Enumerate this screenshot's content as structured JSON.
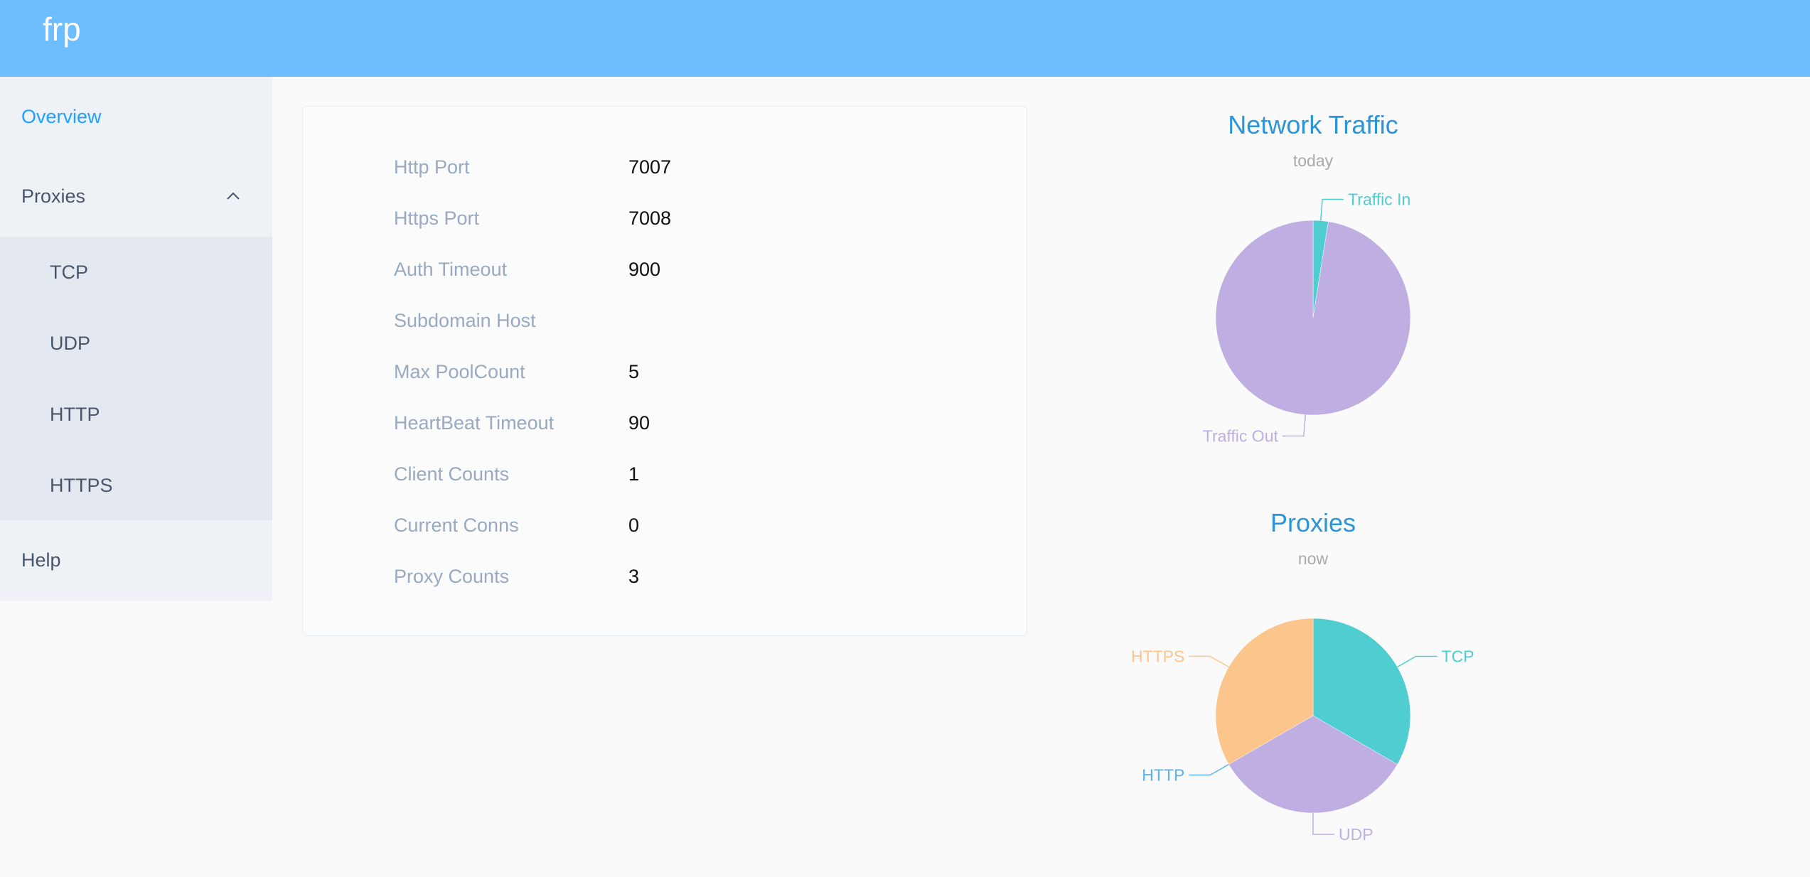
{
  "header": {
    "logo": "frp",
    "color": "#6ebeff"
  },
  "sidebar": {
    "overview": "Overview",
    "proxies": "Proxies",
    "sub_items": [
      "TCP",
      "UDP",
      "HTTP",
      "HTTPS"
    ],
    "help": "Help",
    "expand_icon": "chevron-up-icon"
  },
  "server_info": [
    {
      "label": "Http Port",
      "value": "7007"
    },
    {
      "label": "Https Port",
      "value": "7008"
    },
    {
      "label": "Auth Timeout",
      "value": "900"
    },
    {
      "label": "Subdomain Host",
      "value": ""
    },
    {
      "label": "Max PoolCount",
      "value": "5"
    },
    {
      "label": "HeartBeat Timeout",
      "value": "90"
    },
    {
      "label": "Client Counts",
      "value": "1"
    },
    {
      "label": "Current Conns",
      "value": "0"
    },
    {
      "label": "Proxy Counts",
      "value": "3"
    }
  ],
  "chart_data": [
    {
      "type": "pie",
      "title": "Network Traffic",
      "subtitle": "today",
      "categories": [
        "Traffic In",
        "Traffic Out"
      ],
      "values": [
        2.5,
        97.5
      ],
      "colors": [
        "#50cdd1",
        "#bfaee2"
      ]
    },
    {
      "type": "pie",
      "title": "Proxies",
      "subtitle": "now",
      "categories": [
        "TCP",
        "UDP",
        "HTTP",
        "HTTPS"
      ],
      "values": [
        1,
        1,
        0,
        1
      ],
      "colors": [
        "#50cdd1",
        "#bfaee2",
        "#5ab1ef",
        "#fbc58c"
      ]
    }
  ]
}
